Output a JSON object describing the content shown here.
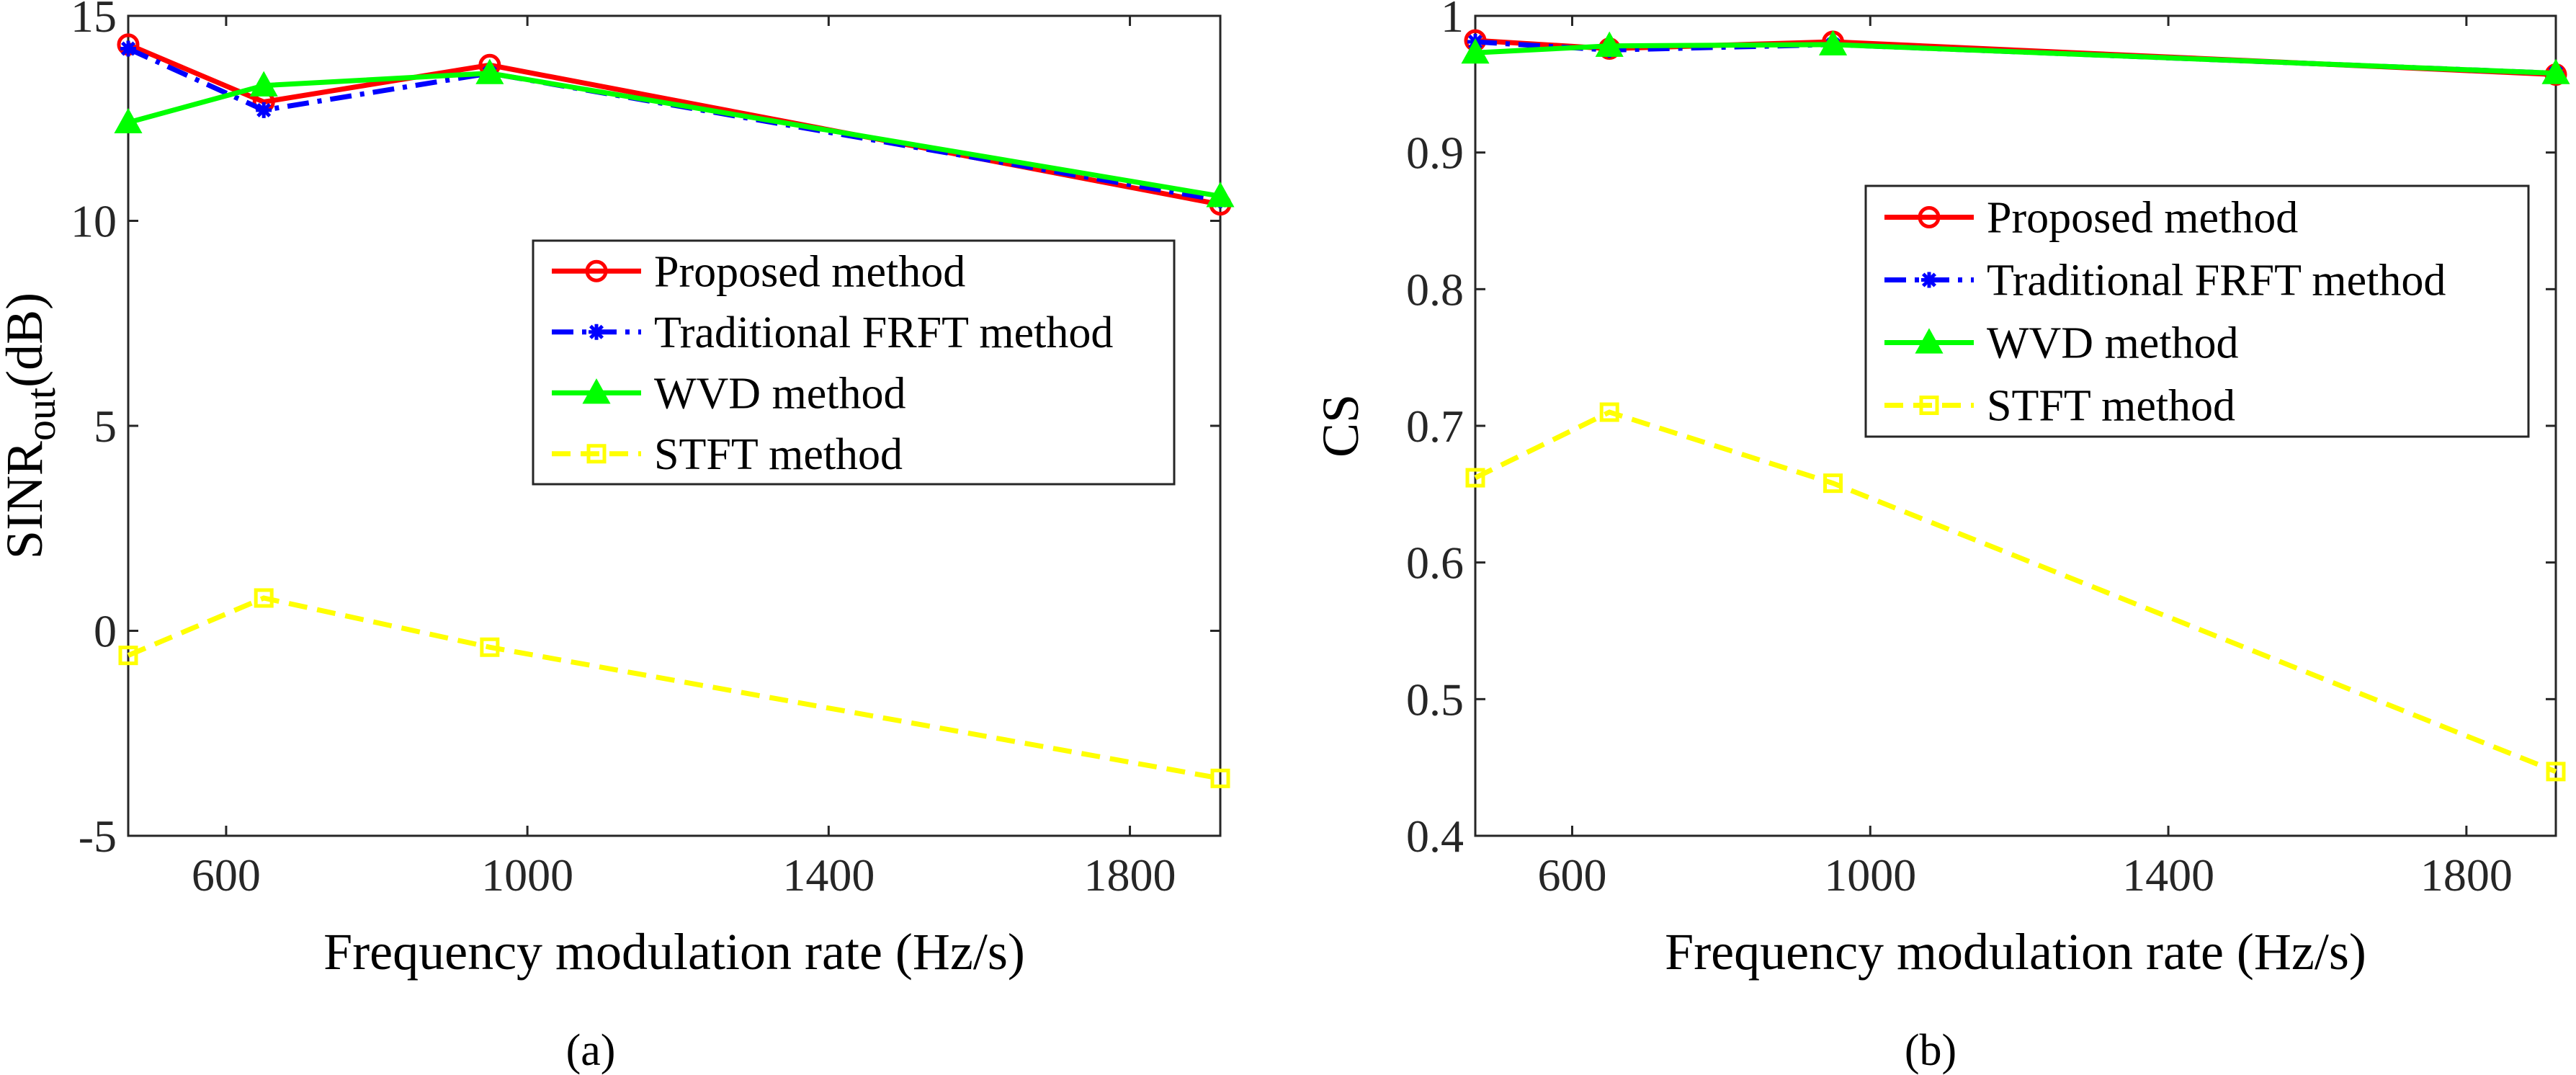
{
  "chart_data": [
    {
      "type": "line",
      "caption": "(a)",
      "xlabel": "Frequency modulation rate (Hz/s)",
      "ylabel_main": "SINR",
      "ylabel_sub": "out",
      "ylabel_tail": "(dB)",
      "xlim": [
        470,
        1920
      ],
      "ylim": [
        -5,
        15
      ],
      "xticks": [
        600,
        1000,
        1400,
        1800
      ],
      "xtick_labels": [
        "600",
        "1000",
        "1400",
        "1800"
      ],
      "yticks": [
        -5,
        0,
        5,
        10,
        15
      ],
      "ytick_labels": [
        "-5",
        "0",
        "5",
        "10",
        "15"
      ],
      "x": [
        470,
        650,
        950,
        1920
      ],
      "legend_position": "center-right",
      "series": [
        {
          "name": "Proposed method",
          "color": "#ff0000",
          "style": "solid",
          "marker": "circle",
          "values": [
            14.3,
            12.9,
            13.8,
            10.4
          ]
        },
        {
          "name": "Traditional FRFT method",
          "color": "#0000ff",
          "style": "dashdot",
          "marker": "star",
          "values": [
            14.2,
            12.7,
            13.6,
            10.5
          ]
        },
        {
          "name": "WVD method",
          "color": "#00ff00",
          "style": "solid",
          "marker": "triangle",
          "values": [
            12.4,
            13.3,
            13.6,
            10.6
          ]
        },
        {
          "name": "STFT method",
          "color": "#ffff00",
          "style": "dashed",
          "marker": "square",
          "values": [
            -0.6,
            0.8,
            -0.4,
            -3.6
          ]
        }
      ]
    },
    {
      "type": "line",
      "caption": "(b)",
      "xlabel": "Frequency modulation rate (Hz/s)",
      "ylabel_main": "CS",
      "ylabel_sub": "",
      "ylabel_tail": "",
      "xlim": [
        470,
        1920
      ],
      "ylim": [
        0.4,
        1
      ],
      "xticks": [
        600,
        1000,
        1400,
        1800
      ],
      "xtick_labels": [
        "600",
        "1000",
        "1400",
        "1800"
      ],
      "yticks": [
        0.4,
        0.5,
        0.6,
        0.7,
        0.8,
        0.9,
        1
      ],
      "ytick_labels": [
        "0.4",
        "0.5",
        "0.6",
        "0.7",
        "0.8",
        "0.9",
        "1"
      ],
      "x": [
        470,
        650,
        950,
        1920
      ],
      "legend_position": "upper-right",
      "series": [
        {
          "name": "Proposed method",
          "color": "#ff0000",
          "style": "solid",
          "marker": "circle",
          "values": [
            0.982,
            0.976,
            0.981,
            0.957
          ]
        },
        {
          "name": "Traditional FRFT method",
          "color": "#0000ff",
          "style": "dashdot",
          "marker": "star",
          "values": [
            0.981,
            0.975,
            0.979,
            0.958
          ]
        },
        {
          "name": "WVD method",
          "color": "#00ff00",
          "style": "solid",
          "marker": "triangle",
          "values": [
            0.973,
            0.978,
            0.979,
            0.958
          ]
        },
        {
          "name": "STFT method",
          "color": "#ffff00",
          "style": "dashed",
          "marker": "square",
          "values": [
            0.662,
            0.71,
            0.658,
            0.447
          ]
        }
      ]
    }
  ]
}
